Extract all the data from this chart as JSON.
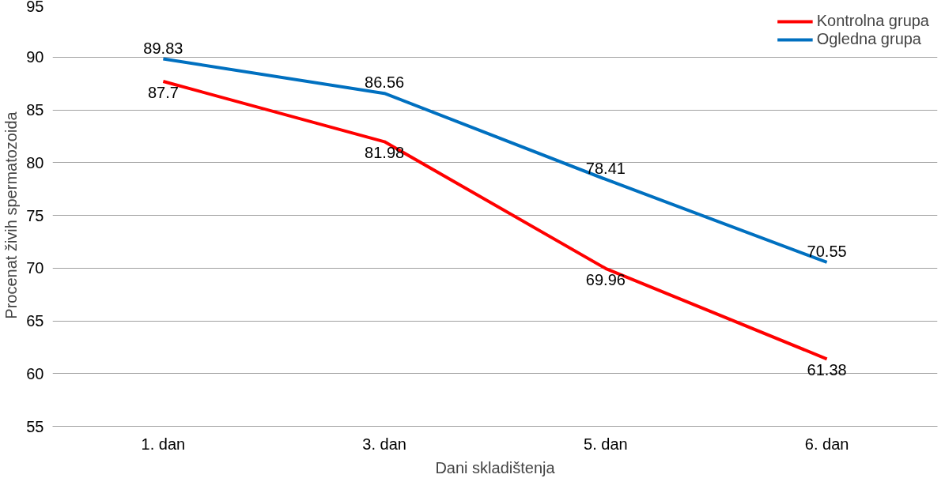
{
  "chart_data": {
    "type": "line",
    "xlabel": "Dani skladištenja",
    "ylabel": "Procenat živih spermatozoida",
    "categories": [
      "1. dan",
      "3. dan",
      "5. dan",
      "6. dan"
    ],
    "series": [
      {
        "name": "Kontrolna grupa",
        "color": "#ff0000",
        "values": [
          87.7,
          81.98,
          69.96,
          61.38
        ]
      },
      {
        "name": "Ogledna grupa",
        "color": "#0070c0",
        "values": [
          89.83,
          86.56,
          78.41,
          70.55
        ]
      }
    ],
    "ylim": [
      55,
      95
    ],
    "yticks": [
      55,
      60,
      65,
      70,
      75,
      80,
      85,
      90,
      95
    ],
    "grid": "y",
    "legend": "top right",
    "data_labels": true,
    "marker": "none",
    "line_style": "solid"
  }
}
